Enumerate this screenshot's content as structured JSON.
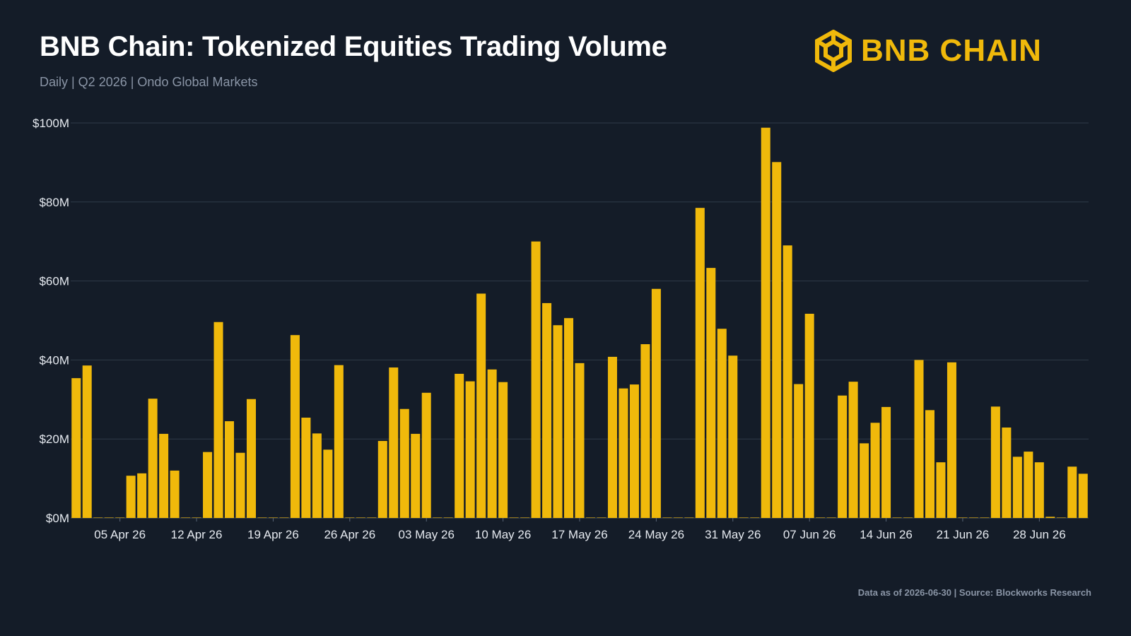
{
  "header": {
    "title": "BNB Chain: Tokenized Equities Trading Volume",
    "subtitle": "Daily | Q2 2026 | Ondo Global Markets"
  },
  "logo": {
    "text": "BNB CHAIN",
    "icon": "bnb-chain-cube-icon"
  },
  "footer": {
    "text": "Data as of 2026-06-30 | Source: Blockworks Research"
  },
  "colors": {
    "background": "#141c28",
    "bar": "#f0b90b",
    "grid": "#2f3a49",
    "text": "#e6eaf0",
    "muted": "#8a95a6",
    "brand": "#f0b90b"
  },
  "chart_data": {
    "type": "bar",
    "title": "BNB Chain: Tokenized Equities Trading Volume",
    "subtitle": "Daily | Q2 2026 | Ondo Global Markets",
    "xlabel": "",
    "ylabel": "",
    "unit": "USD millions",
    "x_start": "2026-04-01",
    "x_end": "2026-06-30",
    "ylim": [
      0,
      100
    ],
    "y_ticks": [
      0,
      20,
      40,
      60,
      80,
      100
    ],
    "y_tick_labels": [
      "$0M",
      "$20M",
      "$40M",
      "$60M",
      "$80M",
      "$100M"
    ],
    "x_tick_labels": [
      "05 Apr 26",
      "12 Apr 26",
      "19 Apr 26",
      "26 Apr 26",
      "03 May 26",
      "10 May 26",
      "17 May 26",
      "24 May 26",
      "31 May 26",
      "07 Jun 26",
      "14 Jun 26",
      "21 Jun 26",
      "28 Jun 26"
    ],
    "x_tick_dates": [
      "2026-04-05",
      "2026-04-12",
      "2026-04-19",
      "2026-04-26",
      "2026-05-03",
      "2026-05-10",
      "2026-05-17",
      "2026-05-24",
      "2026-05-31",
      "2026-06-07",
      "2026-06-14",
      "2026-06-21",
      "2026-06-28"
    ],
    "grid": true,
    "legend": "none",
    "series": [
      {
        "values": [
          35.4,
          38.6,
          0.1,
          0.1,
          0.1,
          10.7,
          11.3,
          30.2,
          21.3,
          12.0,
          0.1,
          0.1,
          16.7,
          49.6,
          24.5,
          16.5,
          30.1,
          0.1,
          0.1,
          0.1,
          46.3,
          25.4,
          21.4,
          17.3,
          38.7,
          0.1,
          0.1,
          0.1,
          19.5,
          38.1,
          27.6,
          21.3,
          31.7,
          0.1,
          0.1,
          36.5,
          34.6,
          56.8,
          37.6,
          34.4,
          0.1,
          0.1,
          70.0,
          54.4,
          48.8,
          50.6,
          39.2,
          0.1,
          0.1,
          40.8,
          32.8,
          33.8,
          44.0,
          58.0,
          0.1,
          0.1,
          0.1,
          78.5,
          63.3,
          47.9,
          41.1,
          0.1,
          0.1,
          98.8,
          90.1,
          69.0,
          33.9,
          51.7,
          0.1,
          0.1,
          31.0,
          34.5,
          18.9,
          24.1,
          28.1,
          0.1,
          0.1,
          40.0,
          27.3,
          14.1,
          39.4,
          0.1,
          0.1,
          0.1,
          28.2,
          22.9,
          15.5,
          16.8,
          14.1,
          0.3,
          0.1,
          13.0,
          11.2
        ]
      }
    ]
  }
}
